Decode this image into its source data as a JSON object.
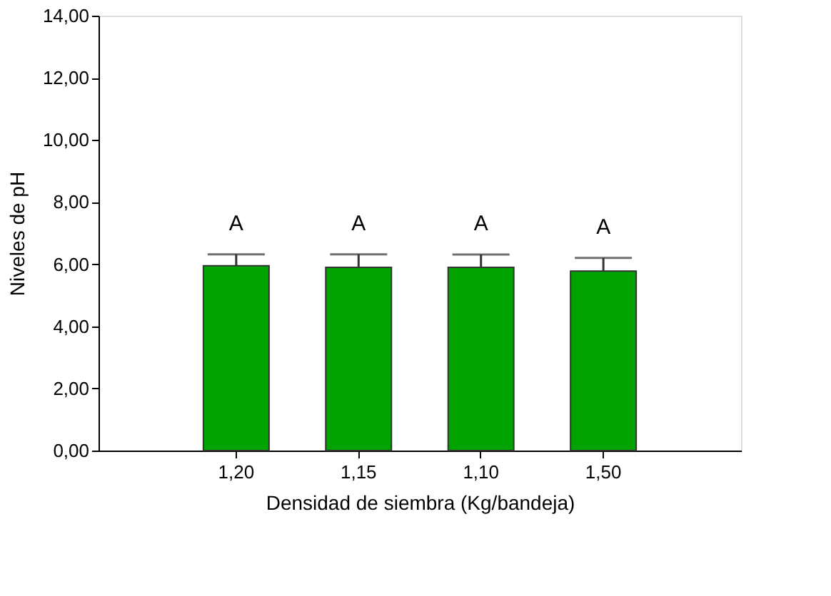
{
  "chart_data": {
    "type": "bar",
    "xlabel": "Densidad de siembra (Kg/bandeja)",
    "ylabel": "Niveles de pH",
    "categories": [
      "1,20",
      "1,15",
      "1,10",
      "1,50"
    ],
    "values": [
      5.95,
      5.9,
      5.9,
      5.78
    ],
    "errors": [
      0.37,
      0.42,
      0.41,
      0.42
    ],
    "color": "#00a300",
    "ylim": [
      0,
      14
    ],
    "yticks": [
      {
        "value": 0,
        "label": "0,00"
      },
      {
        "value": 2,
        "label": "2,00"
      },
      {
        "value": 4,
        "label": "4,00"
      },
      {
        "value": 6,
        "label": "6,00"
      },
      {
        "value": 8,
        "label": "8,00"
      },
      {
        "value": 10,
        "label": "10,00"
      },
      {
        "value": 12,
        "label": "12,00"
      },
      {
        "value": 14,
        "label": "14,00"
      }
    ],
    "annotations": [
      "A",
      "A",
      "A",
      "A"
    ],
    "grid": false
  }
}
